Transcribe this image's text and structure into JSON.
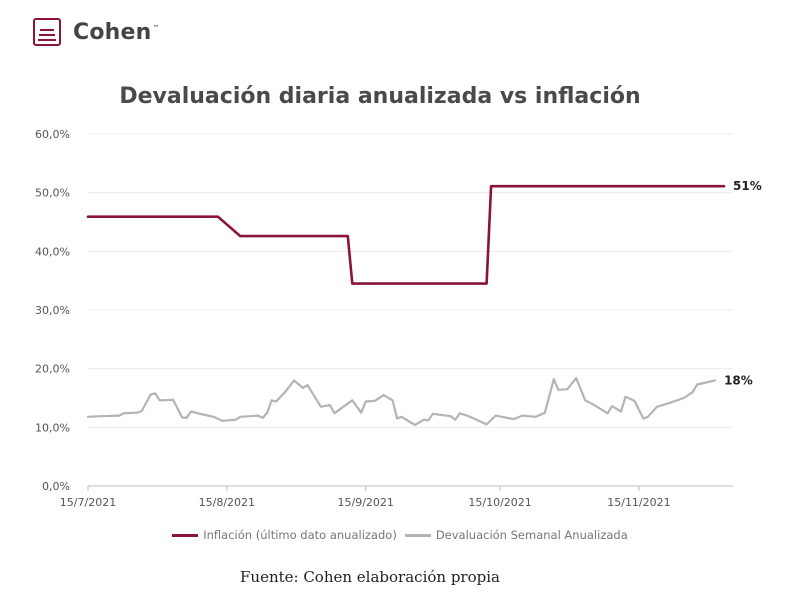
{
  "brand": {
    "name": "Cohen",
    "trademark": "™",
    "color": "#8a1538"
  },
  "chart_data": {
    "type": "line",
    "title": "Devaluación diaria anualizada vs inflación",
    "ylim": [
      0,
      60
    ],
    "yticks": [
      "0,0%",
      "10,0%",
      "20,0%",
      "30,0%",
      "40,0%",
      "50,0%",
      "60,0%"
    ],
    "ytick_values": [
      0,
      10,
      20,
      30,
      40,
      50,
      60
    ],
    "xlim": [
      "2021-07-15",
      "2021-12-06"
    ],
    "xticks": [
      "15/7/2021",
      "15/8/2021",
      "15/9/2021",
      "15/10/2021",
      "15/11/2021"
    ],
    "xtick_dates": [
      "2021-07-15",
      "2021-08-15",
      "2021-09-15",
      "2021-10-15",
      "2021-11-15"
    ],
    "grid": "horizontal",
    "legend_position": "bottom",
    "series": [
      {
        "name": "Inflación (último dato anualizado)",
        "color": "#8a1538",
        "end_label": "51%",
        "points": [
          [
            "2021-07-15",
            45.9
          ],
          [
            "2021-08-13",
            45.9
          ],
          [
            "2021-08-18",
            42.6
          ],
          [
            "2021-09-11",
            42.6
          ],
          [
            "2021-09-12",
            34.5
          ],
          [
            "2021-10-12",
            34.5
          ],
          [
            "2021-10-13",
            51.1
          ],
          [
            "2021-12-04",
            51.1
          ]
        ]
      },
      {
        "name": "Devaluación Semanal Anualizada",
        "color": "#b4b4b4",
        "end_label": "18%",
        "points": [
          [
            "2021-07-15",
            11.8
          ],
          [
            "2021-07-18",
            11.9
          ],
          [
            "2021-07-22",
            12.0
          ],
          [
            "2021-07-23",
            12.4
          ],
          [
            "2021-07-26",
            12.5
          ],
          [
            "2021-07-27",
            12.8
          ],
          [
            "2021-07-29",
            15.6
          ],
          [
            "2021-07-30",
            15.8
          ],
          [
            "2021-07-31",
            14.6
          ],
          [
            "2021-08-03",
            14.7
          ],
          [
            "2021-08-05",
            11.7
          ],
          [
            "2021-08-06",
            11.6
          ],
          [
            "2021-08-07",
            12.7
          ],
          [
            "2021-08-09",
            12.3
          ],
          [
            "2021-08-12",
            11.8
          ],
          [
            "2021-08-14",
            11.1
          ],
          [
            "2021-08-17",
            11.3
          ],
          [
            "2021-08-18",
            11.8
          ],
          [
            "2021-08-22",
            12.0
          ],
          [
            "2021-08-23",
            11.6
          ],
          [
            "2021-08-24",
            12.5
          ],
          [
            "2021-08-25",
            14.6
          ],
          [
            "2021-08-26",
            14.4
          ],
          [
            "2021-08-28",
            16.0
          ],
          [
            "2021-08-30",
            18.0
          ],
          [
            "2021-09-01",
            16.7
          ],
          [
            "2021-09-02",
            17.2
          ],
          [
            "2021-09-05",
            13.5
          ],
          [
            "2021-09-07",
            13.8
          ],
          [
            "2021-09-08",
            12.4
          ],
          [
            "2021-09-10",
            13.5
          ],
          [
            "2021-09-12",
            14.6
          ],
          [
            "2021-09-14",
            12.5
          ],
          [
            "2021-09-15",
            14.4
          ],
          [
            "2021-09-17",
            14.5
          ],
          [
            "2021-09-19",
            15.5
          ],
          [
            "2021-09-21",
            14.6
          ],
          [
            "2021-09-22",
            11.5
          ],
          [
            "2021-09-23",
            11.8
          ],
          [
            "2021-09-26",
            10.4
          ],
          [
            "2021-09-28",
            11.3
          ],
          [
            "2021-09-29",
            11.2
          ],
          [
            "2021-09-30",
            12.3
          ],
          [
            "2021-10-04",
            11.9
          ],
          [
            "2021-10-05",
            11.3
          ],
          [
            "2021-10-06",
            12.4
          ],
          [
            "2021-10-08",
            11.9
          ],
          [
            "2021-10-10",
            11.2
          ],
          [
            "2021-10-12",
            10.5
          ],
          [
            "2021-10-14",
            12.0
          ],
          [
            "2021-10-18",
            11.4
          ],
          [
            "2021-10-20",
            12.0
          ],
          [
            "2021-10-23",
            11.8
          ],
          [
            "2021-10-25",
            12.5
          ],
          [
            "2021-10-27",
            18.2
          ],
          [
            "2021-10-28",
            16.4
          ],
          [
            "2021-10-30",
            16.5
          ],
          [
            "2021-11-01",
            18.4
          ],
          [
            "2021-11-03",
            14.6
          ],
          [
            "2021-11-05",
            13.8
          ],
          [
            "2021-11-08",
            12.4
          ],
          [
            "2021-11-09",
            13.6
          ],
          [
            "2021-11-11",
            12.7
          ],
          [
            "2021-11-12",
            15.2
          ],
          [
            "2021-11-14",
            14.5
          ],
          [
            "2021-11-15",
            13.0
          ],
          [
            "2021-11-16",
            11.5
          ],
          [
            "2021-11-17",
            11.8
          ],
          [
            "2021-11-19",
            13.5
          ],
          [
            "2021-11-22",
            14.2
          ],
          [
            "2021-11-25",
            15.0
          ],
          [
            "2021-11-27",
            16.0
          ],
          [
            "2021-11-28",
            17.3
          ],
          [
            "2021-12-02",
            18.0
          ]
        ]
      }
    ]
  },
  "source": "Fuente: Cohen elaboración propia"
}
